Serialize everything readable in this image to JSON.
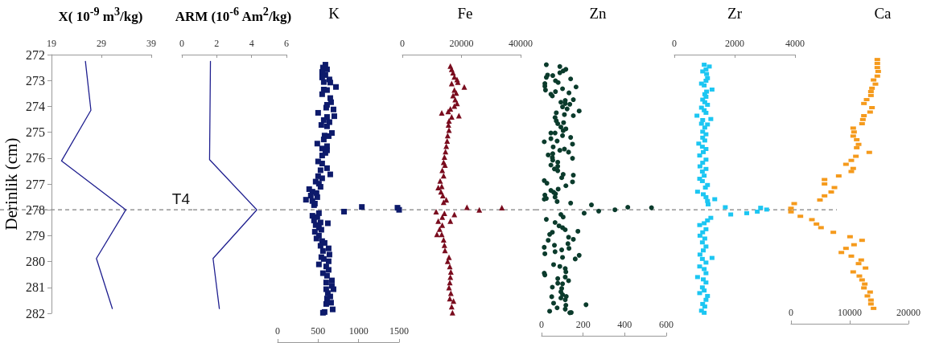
{
  "chart_data": [
    {
      "type": "line",
      "title": "X( 10$^{-9}$ m$^{3}$/kg)",
      "ylabel": "Derinlik (cm)",
      "marker": "none",
      "color": "#1f1f8f",
      "x": [
        25.8,
        26.9,
        21.0,
        33.9,
        28.0,
        31.2
      ],
      "values": [
        272.26,
        274.15,
        276.11,
        278.0,
        279.88,
        281.82
      ],
      "xlim": [
        19,
        39
      ],
      "xticks": [
        19,
        29,
        39
      ],
      "ylim": [
        282,
        272
      ],
      "yticks": [
        272,
        273,
        274,
        275,
        276,
        277,
        278,
        279,
        280,
        281,
        282
      ],
      "ref_lines": [
        {
          "axis": "y",
          "value": 278,
          "label": "T4",
          "color": "#808080",
          "line_style": "dashed"
        }
      ]
    },
    {
      "type": "line",
      "title": "ARM (10$^{-6}$ Am$^{2}$/kg)",
      "marker": "none",
      "color": "#1f1f8f",
      "tick_labels": "x",
      "x": [
        1.64,
        1.59,
        4.3,
        1.79,
        2.15
      ],
      "values": [
        272.26,
        276.06,
        278.0,
        279.88,
        281.82
      ],
      "xlim": [
        0,
        6
      ],
      "xticks": [
        0,
        2,
        4,
        6
      ],
      "ylim": [
        282,
        272
      ],
      "ref_lines": [
        {
          "axis": "y",
          "value": 278,
          "color": "#808080",
          "line_style": "dashed"
        }
      ]
    },
    {
      "type": "scatter",
      "title": "K",
      "marker": "square",
      "color": "#0d1a6b",
      "tick_labels": "x",
      "x": [
        590,
        560,
        610,
        550,
        590,
        550,
        640,
        570,
        720,
        650,
        570,
        610,
        550,
        650,
        660,
        610,
        600,
        500,
        690,
        700,
        610,
        570,
        640,
        540,
        610,
        670,
        580,
        630,
        570,
        490,
        610,
        550,
        610,
        590,
        550,
        500,
        550,
        610,
        530,
        650,
        500,
        550,
        470,
        510,
        530,
        390,
        430,
        480,
        410,
        490,
        350,
        430,
        460,
        450,
        1040,
        1480,
        1500,
        820,
        510,
        430,
        490,
        450,
        530,
        620,
        470,
        510,
        540,
        460,
        510,
        480,
        550,
        580,
        530,
        630,
        560,
        640,
        540,
        570,
        630,
        510,
        600,
        630,
        560,
        610,
        670,
        600,
        670,
        690,
        600,
        620,
        650,
        610,
        660,
        600,
        680,
        580,
        560
      ],
      "values": [
        272.39,
        272.5,
        272.57,
        272.67,
        272.79,
        272.88,
        272.96,
        273.06,
        273.25,
        273.08,
        273.35,
        273.37,
        273.53,
        273.68,
        273.84,
        273.94,
        274.05,
        274.25,
        274.12,
        274.38,
        274.41,
        274.53,
        274.61,
        274.72,
        274.77,
        275.03,
        275.13,
        275.15,
        275.28,
        275.44,
        275.54,
        275.63,
        275.7,
        275.8,
        275.9,
        276.13,
        276.21,
        276.39,
        276.47,
        276.63,
        276.7,
        276.78,
        276.91,
        276.99,
        277.11,
        277.2,
        277.3,
        277.35,
        277.45,
        277.51,
        277.61,
        277.66,
        277.76,
        277.82,
        277.89,
        277.92,
        278.0,
        278.07,
        278.13,
        278.23,
        278.28,
        278.41,
        278.49,
        278.52,
        278.59,
        278.69,
        278.77,
        278.85,
        279.0,
        279.11,
        279.21,
        279.28,
        279.39,
        279.49,
        279.59,
        279.73,
        279.83,
        279.9,
        279.99,
        280.11,
        280.19,
        280.32,
        280.45,
        280.55,
        280.73,
        280.81,
        280.94,
        281.07,
        281.07,
        281.22,
        281.35,
        281.43,
        281.59,
        281.64,
        281.85,
        281.95,
        281.98
      ],
      "xlim": [
        0,
        1500
      ],
      "xticks": [
        0,
        500,
        1000,
        1500
      ],
      "ylim": [
        282,
        272
      ],
      "ref_lines": [
        {
          "axis": "y",
          "value": 278,
          "color": "#808080",
          "line_style": "dashed"
        }
      ]
    },
    {
      "type": "scatter",
      "title": "Fe",
      "marker": "triangle",
      "color": "#7a0c1e",
      "tick_labels": "x",
      "x": [
        16240,
        16690,
        17140,
        17600,
        18500,
        16690,
        18780,
        20950,
        17600,
        18230,
        17140,
        17870,
        18500,
        17600,
        16240,
        15510,
        13330,
        19140,
        16690,
        15780,
        15600,
        15780,
        15330,
        15150,
        14870,
        14600,
        14240,
        13970,
        14420,
        13510,
        13970,
        12790,
        13330,
        12150,
        13060,
        13700,
        14870,
        13970,
        21860,
        26030,
        33650,
        11430,
        14240,
        17600,
        13510,
        12150,
        16240,
        13510,
        12610,
        11700,
        13330,
        13970,
        14240,
        14420,
        15780,
        15330,
        16050,
        16420,
        16240,
        16050,
        15780,
        16420,
        17320,
        16050,
        16690,
        16960
      ],
      "values": [
        272.44,
        272.57,
        272.7,
        272.86,
        272.96,
        273.12,
        273.06,
        273.25,
        273.37,
        273.48,
        273.58,
        273.74,
        273.89,
        273.99,
        274.1,
        274.2,
        274.25,
        274.36,
        274.41,
        274.56,
        274.72,
        274.92,
        275.13,
        275.34,
        275.54,
        275.75,
        275.96,
        276.16,
        276.27,
        276.47,
        276.68,
        276.88,
        277.09,
        277.14,
        277.3,
        277.45,
        277.61,
        277.71,
        277.9,
        278.0,
        277.92,
        278.07,
        278.13,
        278.18,
        278.28,
        278.44,
        278.44,
        278.59,
        278.75,
        278.95,
        278.95,
        279.16,
        279.37,
        279.57,
        279.83,
        279.99,
        280.19,
        280.4,
        280.6,
        280.81,
        281.01,
        281.22,
        281.53,
        281.43,
        281.74,
        281.98
      ],
      "xlim": [
        0,
        40000
      ],
      "xticks": [
        0,
        20000,
        40000
      ],
      "ylim": [
        282,
        272
      ],
      "ref_lines": [
        {
          "axis": "y",
          "value": 278,
          "color": "#808080",
          "line_style": "dashed"
        }
      ]
    },
    {
      "type": "scatter",
      "title": "Zn",
      "marker": "circle",
      "color": "#0b3b2c",
      "tick_labels": "x",
      "x": [
        23,
        88,
        117,
        104,
        88,
        29,
        54,
        23,
        140,
        67,
        16,
        80,
        166,
        16,
        101,
        19,
        67,
        132,
        45,
        52,
        153,
        114,
        93,
        114,
        136,
        101,
        181,
        123,
        153,
        110,
        71,
        65,
        71,
        78,
        106,
        93,
        104,
        117,
        45,
        65,
        101,
        13,
        45,
        75,
        140,
        149,
        56,
        88,
        110,
        130,
        32,
        54,
        52,
        149,
        54,
        45,
        78,
        62,
        78,
        78,
        104,
        153,
        97,
        117,
        149,
        13,
        26,
        80,
        45,
        58,
        67,
        16,
        13,
        23,
        65,
        75,
        140,
        240,
        205,
        275,
        353,
        415,
        529,
        93,
        104,
        23,
        65,
        84,
        101,
        114,
        175,
        52,
        39,
        32,
        130,
        153,
        62,
        127,
        13,
        132,
        65,
        97,
        16,
        181,
        162,
        101,
        58,
        88,
        114,
        117,
        13,
        16,
        78,
        130,
        114,
        101,
        52,
        78,
        97,
        93,
        101,
        49,
        119,
        93,
        114,
        58,
        214,
        117,
        75,
        114,
        39,
        143,
        136
      ],
      "values": [
        272.39,
        272.46,
        272.57,
        272.63,
        272.7,
        272.79,
        272.81,
        272.88,
        272.94,
        273.01,
        273.12,
        273.08,
        273.25,
        273.22,
        273.32,
        273.37,
        273.43,
        273.48,
        273.53,
        273.6,
        273.74,
        273.77,
        273.84,
        273.89,
        273.92,
        274.02,
        274.18,
        274.1,
        274.36,
        274.32,
        274.25,
        274.43,
        274.56,
        274.67,
        274.63,
        274.8,
        274.94,
        274.87,
        275.03,
        275.03,
        275.13,
        275.37,
        275.25,
        275.34,
        275.2,
        275.46,
        275.57,
        275.7,
        275.65,
        275.77,
        275.88,
        275.83,
        275.98,
        276.01,
        276.08,
        276.27,
        276.16,
        276.42,
        276.32,
        276.49,
        276.63,
        276.66,
        276.76,
        277.07,
        276.92,
        276.87,
        276.97,
        277.2,
        277.25,
        277.32,
        277.38,
        277.43,
        277.59,
        277.56,
        277.51,
        277.68,
        277.74,
        277.81,
        278.13,
        278.05,
        278.0,
        277.9,
        277.92,
        278.18,
        278.28,
        278.37,
        278.49,
        278.62,
        278.69,
        278.77,
        278.83,
        278.87,
        278.95,
        279.18,
        279.06,
        279.14,
        279.37,
        279.31,
        279.45,
        279.49,
        279.62,
        279.55,
        279.7,
        279.76,
        279.9,
        279.84,
        280.12,
        280.19,
        280.27,
        280.4,
        280.45,
        280.52,
        280.66,
        280.74,
        280.6,
        280.86,
        280.99,
        280.84,
        281.04,
        281.17,
        281.28,
        281.36,
        281.35,
        281.41,
        281.48,
        281.61,
        281.67,
        281.69,
        281.79,
        281.84,
        281.92,
        281.97,
        281.98
      ],
      "xlim": [
        0,
        600
      ],
      "xticks": [
        0,
        200,
        400,
        600
      ],
      "ylim": [
        282,
        272
      ],
      "ref_lines": [
        {
          "axis": "y",
          "value": 278,
          "color": "#808080",
          "line_style": "dashed"
        }
      ]
    },
    {
      "type": "scatter",
      "title": "Zr",
      "marker": "square",
      "color": "#1cc6f2",
      "tick_labels": "x",
      "x": [
        990,
        1160,
        1050,
        940,
        1070,
        1100,
        1050,
        900,
        990,
        1250,
        1070,
        1010,
        1050,
        940,
        1010,
        1100,
        900,
        990,
        750,
        1050,
        1210,
        940,
        1100,
        900,
        1010,
        940,
        1050,
        940,
        1010,
        810,
        930,
        1050,
        960,
        840,
        1050,
        940,
        850,
        1050,
        930,
        990,
        840,
        930,
        1100,
        1030,
        770,
        960,
        1050,
        1340,
        1100,
        1120,
        1690,
        1870,
        2400,
        2750,
        2860,
        3060,
        1210,
        1100,
        990,
        840,
        1050,
        940,
        850,
        1010,
        930,
        1050,
        960,
        850,
        1250,
        930,
        1050,
        840,
        990,
        1050,
        770,
        960,
        1050,
        930,
        990,
        840,
        1100,
        1050,
        940,
        1010,
        900,
        990
      ],
      "values": [
        272.39,
        272.46,
        272.57,
        272.65,
        272.75,
        272.91,
        273.01,
        273.12,
        273.19,
        273.35,
        273.43,
        273.53,
        273.63,
        273.74,
        273.84,
        273.94,
        274.05,
        274.15,
        274.36,
        274.25,
        274.49,
        274.53,
        274.7,
        274.67,
        274.82,
        274.98,
        275.08,
        275.21,
        275.32,
        275.44,
        275.56,
        275.65,
        275.77,
        275.9,
        276.06,
        276.18,
        276.32,
        276.42,
        276.52,
        276.68,
        276.8,
        276.89,
        277.04,
        277.14,
        277.3,
        277.4,
        277.51,
        277.59,
        277.66,
        277.79,
        277.9,
        278.18,
        278.13,
        278.07,
        277.92,
        277.99,
        278.31,
        278.41,
        278.52,
        278.59,
        278.75,
        278.87,
        279.0,
        279.11,
        279.26,
        279.42,
        279.57,
        279.73,
        279.86,
        279.9,
        280.04,
        280.19,
        280.29,
        280.45,
        280.6,
        280.69,
        280.81,
        281.0,
        281.12,
        281.22,
        281.33,
        281.48,
        281.64,
        281.74,
        281.9,
        281.98
      ],
      "xlim": [
        0,
        4000
      ],
      "xticks": [
        0,
        2000,
        4000
      ],
      "ylim": [
        282,
        272
      ],
      "ref_lines": [
        {
          "axis": "y",
          "value": 278,
          "color": "#808080",
          "line_style": "dashed"
        }
      ]
    },
    {
      "type": "scatter",
      "title": "Ca",
      "marker": "square",
      "color": "#f59a1c",
      "tick_labels": "x",
      "x": [
        14700,
        14700,
        14700,
        14840,
        14700,
        14060,
        14380,
        13790,
        13610,
        13610,
        12880,
        12420,
        13790,
        13470,
        12420,
        12240,
        12100,
        10590,
        10730,
        10590,
        11190,
        11510,
        11190,
        13330,
        11050,
        10270,
        9360,
        10590,
        10270,
        8130,
        5710,
        5710,
        7400,
        6850,
        5710,
        4930,
        550,
        0,
        0,
        1600,
        3560,
        4340,
        5110,
        7210,
        10050,
        12100,
        10730,
        9360,
        8580,
        10270,
        11960,
        11510,
        12690,
        10590,
        11640,
        12100,
        12560,
        12420,
        13470,
        13010,
        13610,
        13610,
        14060
      ],
      "values": [
        272.19,
        272.34,
        272.5,
        272.65,
        272.83,
        272.98,
        273.14,
        273.3,
        273.43,
        273.58,
        273.74,
        273.89,
        274.05,
        274.22,
        274.36,
        274.51,
        274.67,
        274.84,
        274.99,
        275.15,
        275.29,
        275.47,
        275.6,
        275.78,
        275.93,
        276.09,
        276.24,
        276.4,
        276.52,
        276.69,
        276.83,
        277.0,
        277.14,
        277.31,
        277.46,
        277.62,
        277.76,
        277.94,
        278.08,
        278.25,
        278.38,
        278.55,
        278.69,
        278.87,
        279.04,
        279.18,
        279.35,
        279.49,
        279.65,
        279.79,
        279.94,
        280.08,
        280.25,
        280.4,
        280.56,
        280.71,
        280.87,
        281.02,
        281.18,
        281.33,
        281.49,
        281.64,
        281.81
      ],
      "xlim": [
        0,
        20000
      ],
      "xticks": [
        0,
        10000,
        20000
      ],
      "ylim": [
        282,
        272
      ],
      "ref_lines": [
        {
          "axis": "y",
          "value": 278,
          "color": "#808080",
          "line_style": "dashed"
        }
      ]
    }
  ]
}
